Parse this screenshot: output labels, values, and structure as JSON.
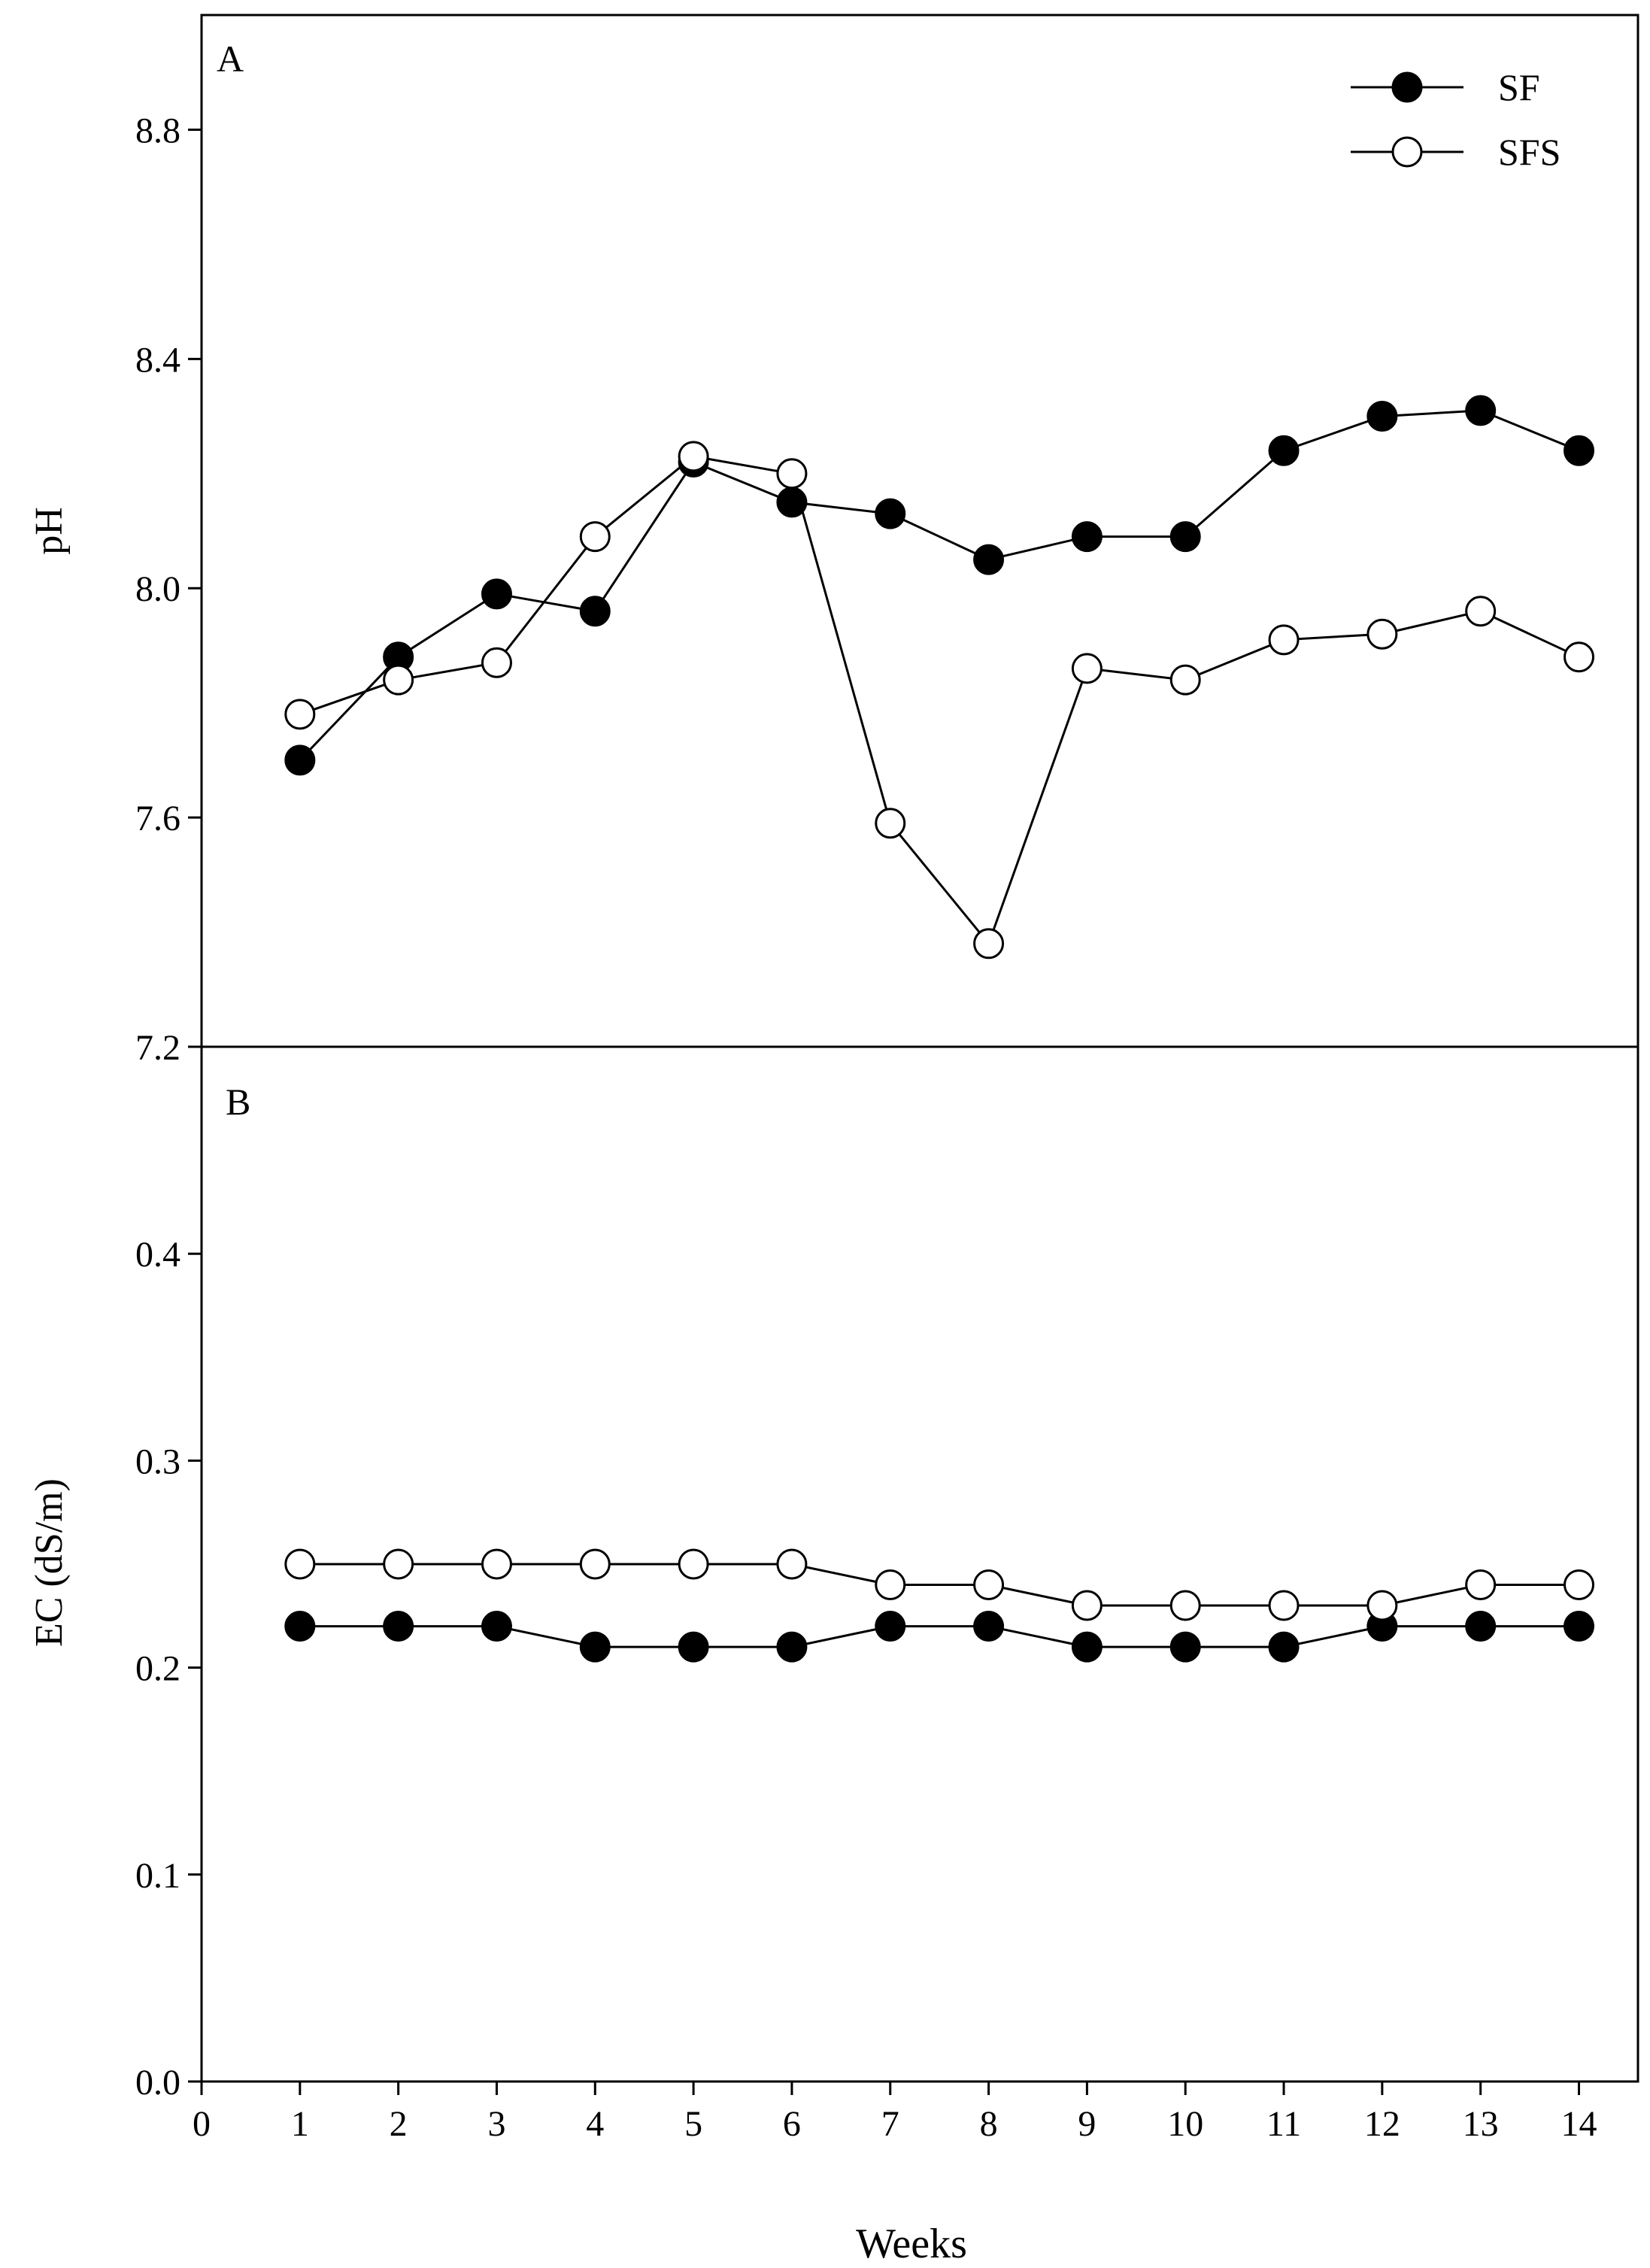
{
  "chart_data": [
    {
      "panel": "A",
      "type": "line",
      "title": "",
      "panel_label": "A",
      "xlabel": "Weeks",
      "ylabel": "pH",
      "xlim": [
        0,
        14.6
      ],
      "ylim": [
        7.2,
        9.0
      ],
      "x_ticks": [
        "0",
        "1",
        "2",
        "3",
        "4",
        "5",
        "6",
        "7",
        "8",
        "9",
        "10",
        "11",
        "12",
        "13",
        "14"
      ],
      "y_ticks": [
        "7.2",
        "7.6",
        "8.0",
        "8.4",
        "8.8"
      ],
      "legend_position": "top-right",
      "x": [
        1,
        2,
        3,
        4,
        5,
        6,
        7,
        8,
        9,
        10,
        11,
        12,
        13,
        14
      ],
      "series": [
        {
          "name": "SF",
          "marker": "filled-circle",
          "values": [
            7.7,
            7.88,
            7.99,
            7.96,
            8.22,
            8.15,
            8.13,
            8.05,
            8.09,
            8.09,
            8.24,
            8.3,
            8.31,
            8.24
          ]
        },
        {
          "name": "SFS",
          "marker": "open-circle",
          "values": [
            7.78,
            7.84,
            7.87,
            8.09,
            8.23,
            8.2,
            7.59,
            7.38,
            7.86,
            7.84,
            7.91,
            7.92,
            7.96,
            7.88
          ]
        }
      ]
    },
    {
      "panel": "B",
      "type": "line",
      "title": "",
      "panel_label": "B",
      "xlabel": "Weeks",
      "ylabel": "EC (dS/m)",
      "xlim": [
        0,
        14.6
      ],
      "ylim": [
        0.0,
        0.5
      ],
      "x_ticks": [
        "0",
        "1",
        "2",
        "3",
        "4",
        "5",
        "6",
        "7",
        "8",
        "9",
        "10",
        "11",
        "12",
        "13",
        "14"
      ],
      "y_ticks": [
        "0.0",
        "0.1",
        "0.2",
        "0.3",
        "0.4"
      ],
      "x": [
        1,
        2,
        3,
        4,
        5,
        6,
        7,
        8,
        9,
        10,
        11,
        12,
        13,
        14
      ],
      "series": [
        {
          "name": "SF",
          "marker": "filled-circle",
          "values": [
            0.22,
            0.22,
            0.22,
            0.21,
            0.21,
            0.21,
            0.22,
            0.22,
            0.21,
            0.21,
            0.21,
            0.22,
            0.22,
            0.22
          ]
        },
        {
          "name": "SFS",
          "marker": "open-circle",
          "values": [
            0.25,
            0.25,
            0.25,
            0.25,
            0.25,
            0.25,
            0.24,
            0.24,
            0.23,
            0.23,
            0.23,
            0.23,
            0.24,
            0.24
          ]
        }
      ]
    }
  ]
}
